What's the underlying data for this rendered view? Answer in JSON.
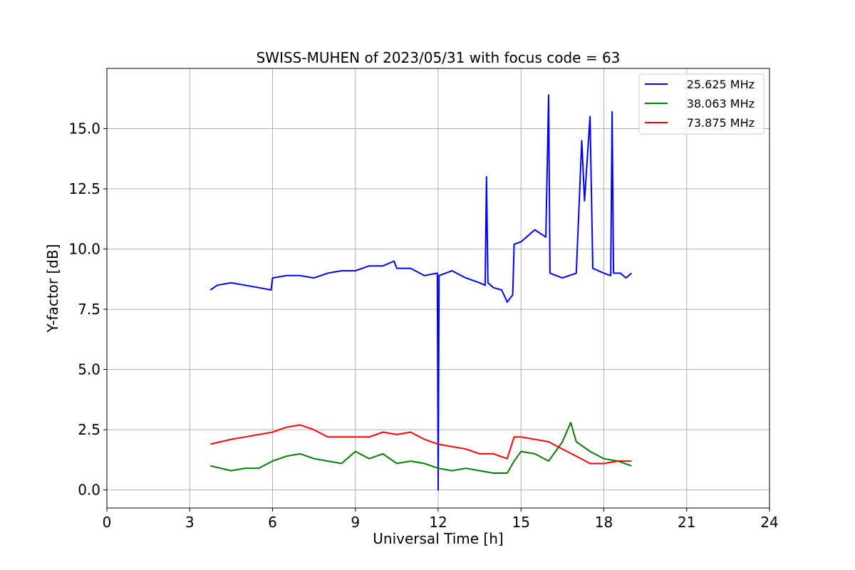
{
  "chart_data": {
    "type": "line",
    "title": "SWISS-MUHEN of 2023/05/31 with focus code = 63",
    "xlabel": "Universal Time [h]",
    "ylabel": "Y-factor [dB]",
    "xlim": [
      0,
      24
    ],
    "ylim": [
      -0.75,
      17.5
    ],
    "x_ticks": [
      0,
      3,
      6,
      9,
      12,
      15,
      18,
      21,
      24
    ],
    "x_tick_labels": [
      "0",
      "3",
      "6",
      "9",
      "12",
      "15",
      "18",
      "21",
      "24"
    ],
    "y_ticks": [
      0.0,
      2.5,
      5.0,
      7.5,
      10.0,
      12.5,
      15.0
    ],
    "y_tick_labels": [
      "0.0",
      "2.5",
      "5.0",
      "7.5",
      "10.0",
      "12.5",
      "15.0"
    ],
    "grid": true,
    "legend_position": "top-right",
    "series": [
      {
        "name": "25.625 MHz",
        "color": "#0000ff",
        "x": [
          3.75,
          4.0,
          4.5,
          5.0,
          5.5,
          5.95,
          6.0,
          6.5,
          7.0,
          7.5,
          8.0,
          8.5,
          9.0,
          9.5,
          10.0,
          10.4,
          10.5,
          11.0,
          11.5,
          11.97,
          12.0,
          12.03,
          12.5,
          13.0,
          13.5,
          13.7,
          13.75,
          13.8,
          14.0,
          14.3,
          14.5,
          14.7,
          14.75,
          15.0,
          15.5,
          15.9,
          16.0,
          16.05,
          16.5,
          17.0,
          17.2,
          17.3,
          17.5,
          17.6,
          18.0,
          18.25,
          18.3,
          18.35,
          18.6,
          18.8,
          19.0
        ],
        "y": [
          8.3,
          8.5,
          8.6,
          8.5,
          8.4,
          8.3,
          8.8,
          8.9,
          8.9,
          8.8,
          9.0,
          9.1,
          9.1,
          9.3,
          9.3,
          9.5,
          9.2,
          9.2,
          8.9,
          9.0,
          0.0,
          8.9,
          9.1,
          8.8,
          8.6,
          8.5,
          13.0,
          8.6,
          8.4,
          8.3,
          7.8,
          8.1,
          10.2,
          10.3,
          10.8,
          10.5,
          16.4,
          9.0,
          8.8,
          9.0,
          14.5,
          12.0,
          15.5,
          9.2,
          9.0,
          8.9,
          15.7,
          9.0,
          9.0,
          8.8,
          9.0
        ]
      },
      {
        "name": "38.063 MHz",
        "color": "#008000",
        "x": [
          3.75,
          4.5,
          5.0,
          5.5,
          6.0,
          6.5,
          7.0,
          7.5,
          8.0,
          8.5,
          9.0,
          9.5,
          10.0,
          10.5,
          11.0,
          11.5,
          12.0,
          12.5,
          13.0,
          13.5,
          14.0,
          14.5,
          14.75,
          15.0,
          15.5,
          16.0,
          16.5,
          16.8,
          17.0,
          17.5,
          18.0,
          18.5,
          19.0
        ],
        "y": [
          1.0,
          0.8,
          0.9,
          0.9,
          1.2,
          1.4,
          1.5,
          1.3,
          1.2,
          1.1,
          1.6,
          1.3,
          1.5,
          1.1,
          1.2,
          1.1,
          0.9,
          0.8,
          0.9,
          0.8,
          0.7,
          0.7,
          1.2,
          1.6,
          1.5,
          1.2,
          2.0,
          2.8,
          2.0,
          1.6,
          1.3,
          1.2,
          1.0
        ]
      },
      {
        "name": "73.875 MHz",
        "color": "#ff0000",
        "x": [
          3.75,
          4.5,
          5.0,
          5.5,
          6.0,
          6.5,
          7.0,
          7.5,
          8.0,
          8.5,
          9.0,
          9.5,
          10.0,
          10.5,
          11.0,
          11.5,
          12.0,
          12.5,
          13.0,
          13.5,
          14.0,
          14.5,
          14.75,
          15.0,
          15.5,
          16.0,
          16.5,
          17.0,
          17.5,
          18.0,
          18.5,
          19.0
        ],
        "y": [
          1.9,
          2.1,
          2.2,
          2.3,
          2.4,
          2.6,
          2.7,
          2.5,
          2.2,
          2.2,
          2.2,
          2.2,
          2.4,
          2.3,
          2.4,
          2.1,
          1.9,
          1.8,
          1.7,
          1.5,
          1.5,
          1.3,
          2.2,
          2.2,
          2.1,
          2.0,
          1.7,
          1.4,
          1.1,
          1.1,
          1.2,
          1.2
        ]
      }
    ]
  }
}
